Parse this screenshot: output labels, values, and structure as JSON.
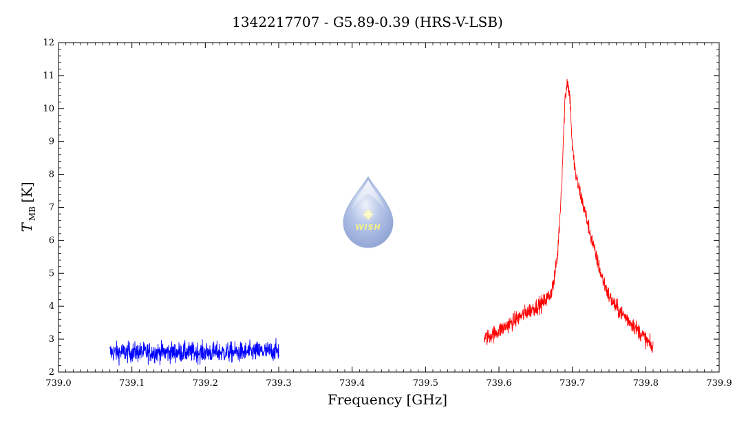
{
  "chart_data": {
    "type": "line",
    "title": "1342217707 - G5.89-0.39 (HRS-V-LSB)",
    "xlabel": "Frequency [GHz]",
    "ylabel_main": "T",
    "ylabel_sub": "MB",
    "ylabel_unit": "[K]",
    "xlim": [
      739.0,
      739.9
    ],
    "ylim": [
      2,
      12
    ],
    "xticks": [
      "739.0",
      "739.1",
      "739.2",
      "739.3",
      "739.4",
      "739.5",
      "739.6",
      "739.7",
      "739.8",
      "739.9"
    ],
    "yticks": [
      "2",
      "3",
      "4",
      "5",
      "6",
      "7",
      "8",
      "9",
      "10",
      "11",
      "12"
    ],
    "grid": false,
    "series": [
      {
        "color": "#0000ff",
        "x": [
          739.07,
          739.1,
          739.15,
          739.2,
          739.25,
          739.3
        ],
        "y": [
          2.6,
          2.6,
          2.6,
          2.6,
          2.6,
          2.65
        ],
        "noise": 0.15
      },
      {
        "color": "#ff0000",
        "x": [
          739.58,
          739.6,
          739.62,
          739.64,
          739.66,
          739.67,
          739.675,
          739.68,
          739.685,
          739.69,
          739.693,
          739.697,
          739.7,
          739.705,
          739.71,
          739.72,
          739.73,
          739.74,
          739.75,
          739.76,
          739.78,
          739.8,
          739.81
        ],
        "y": [
          3.0,
          3.25,
          3.55,
          3.85,
          4.1,
          4.35,
          4.75,
          5.6,
          7.5,
          10.3,
          10.85,
          10.3,
          8.8,
          7.9,
          7.5,
          6.6,
          5.7,
          4.9,
          4.3,
          3.95,
          3.5,
          3.0,
          2.7
        ],
        "noise": 0.12
      }
    ]
  },
  "logo": {
    "text": "WISH"
  }
}
